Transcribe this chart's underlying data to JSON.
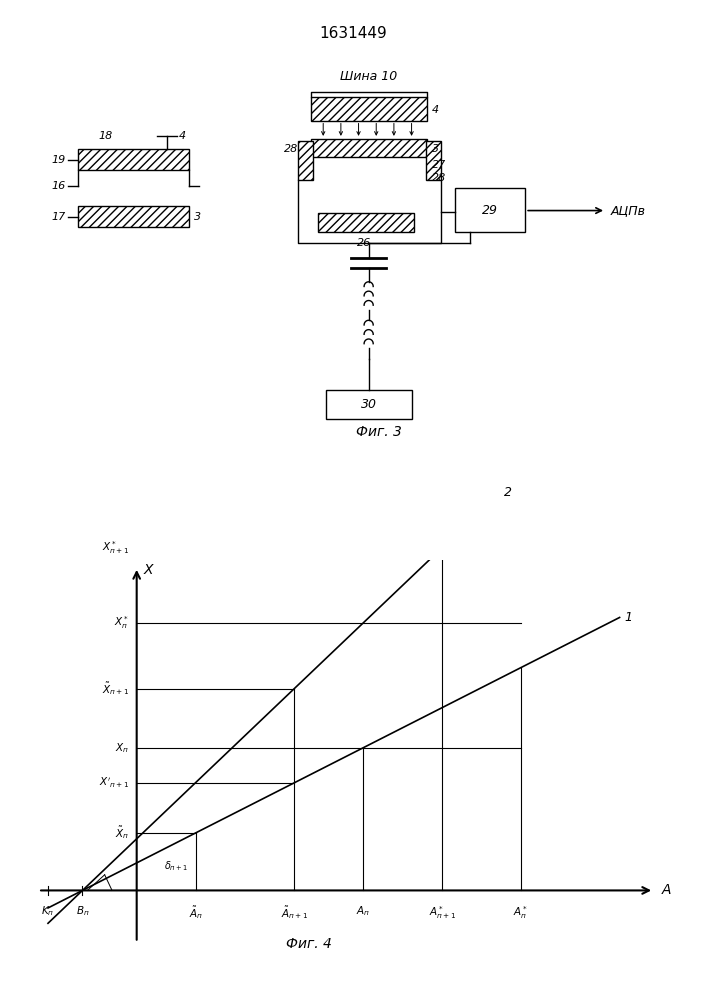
{
  "title": "1631449",
  "fig3_label": "Фиг. 3",
  "fig4_label": "Фиг. 4",
  "background_color": "#ffffff",
  "line_color": "#000000"
}
